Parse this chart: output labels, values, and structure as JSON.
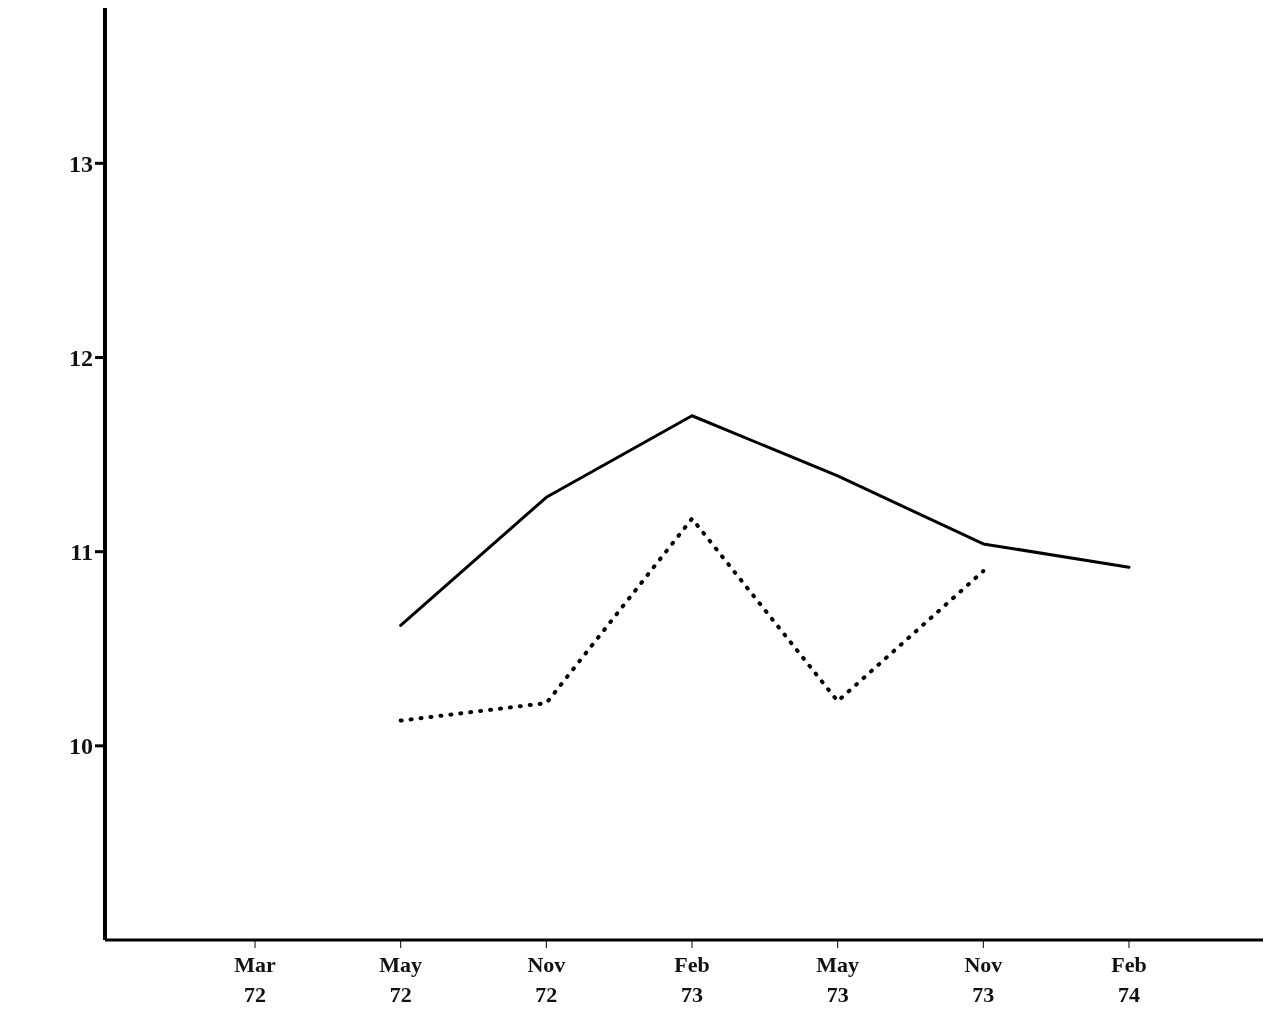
{
  "chart_data": {
    "type": "line",
    "categories": [
      "Mar 72",
      "May 72",
      "Nov 72",
      "Feb 73",
      "May 73",
      "Nov 73",
      "Feb 74"
    ],
    "series": [
      {
        "color": "#000000",
        "line_style": "solid",
        "values": [
          null,
          10.62,
          11.28,
          11.7,
          11.39,
          11.04,
          10.92
        ]
      },
      {
        "color": "#000000",
        "line_style": "dotted",
        "values": [
          null,
          10.13,
          10.22,
          11.17,
          10.23,
          10.9,
          null
        ]
      }
    ],
    "ylim": [
      9,
      13.8
    ],
    "yticks": [
      10,
      11,
      12,
      13
    ],
    "grid": false,
    "legend": false,
    "marker": "none"
  }
}
